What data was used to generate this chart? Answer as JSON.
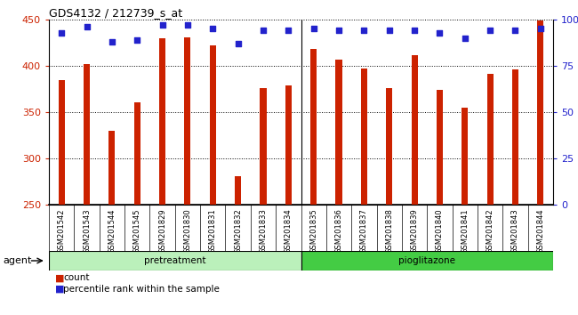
{
  "title": "GDS4132 / 212739_s_at",
  "categories": [
    "GSM201542",
    "GSM201543",
    "GSM201544",
    "GSM201545",
    "GSM201829",
    "GSM201830",
    "GSM201831",
    "GSM201832",
    "GSM201833",
    "GSM201834",
    "GSM201835",
    "GSM201836",
    "GSM201837",
    "GSM201838",
    "GSM201839",
    "GSM201840",
    "GSM201841",
    "GSM201842",
    "GSM201843",
    "GSM201844"
  ],
  "counts": [
    385,
    402,
    330,
    361,
    430,
    431,
    422,
    281,
    376,
    379,
    418,
    407,
    397,
    376,
    412,
    374,
    355,
    391,
    396,
    449
  ],
  "percentile_ranks": [
    93,
    96,
    88,
    89,
    97,
    97,
    95,
    87,
    94,
    94,
    95,
    94,
    94,
    94,
    94,
    93,
    90,
    94,
    94,
    95
  ],
  "pretreatment_count": 10,
  "pioglitazone_count": 10,
  "ylim_left": [
    250,
    450
  ],
  "ylim_right": [
    0,
    100
  ],
  "yticks_left": [
    250,
    300,
    350,
    400,
    450
  ],
  "yticks_right": [
    0,
    25,
    50,
    75,
    100
  ],
  "ytick_labels_right": [
    "0",
    "25",
    "50",
    "75",
    "100%"
  ],
  "bar_color": "#cc2200",
  "dot_color": "#2222cc",
  "pretreatment_color": "#bbf0bb",
  "pioglitazone_color": "#44cc44",
  "xtick_bg_color": "#cccccc",
  "agent_label": "agent",
  "pretreatment_label": "pretreatment",
  "pioglitazone_label": "pioglitazone",
  "legend_count_label": "count",
  "legend_pct_label": "percentile rank within the sample",
  "tick_label_color_left": "#cc2200",
  "tick_label_color_right": "#2222cc",
  "bar_width": 0.25
}
